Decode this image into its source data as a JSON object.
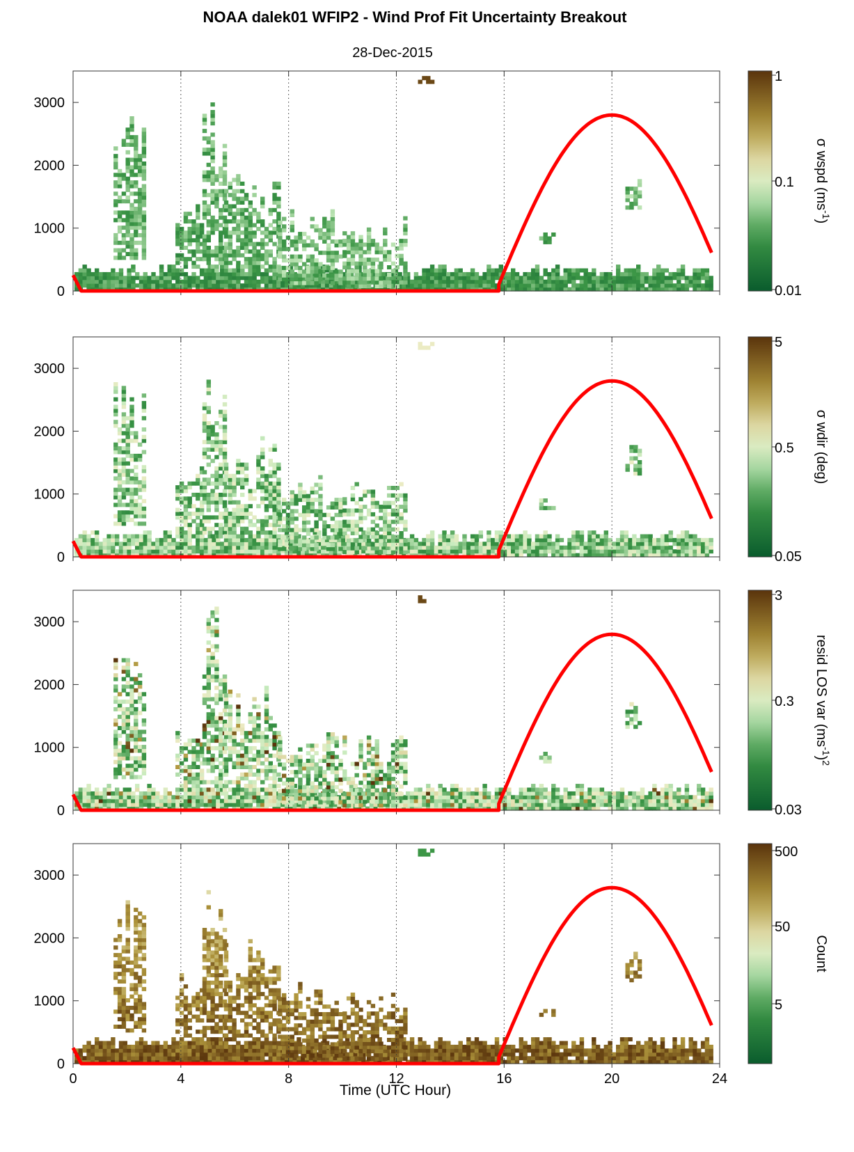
{
  "figure": {
    "title": "NOAA dalek01 WFIP2 - Wind Prof Fit Uncertainty Breakout",
    "subtitle": "28-Dec-2015",
    "xlabel": "Time (UTC Hour)",
    "colors": {
      "sun_curve": "#ff0000",
      "cmap_low": "#0a5a2a",
      "cmap_mid": "#f4f4e4",
      "cmap_high": "#5a330a"
    }
  },
  "chart_data": [
    {
      "type": "heatmap",
      "name": "σ wspd",
      "colorbar": {
        "label_main": "σ wspd (ms",
        "label_sup": "-1",
        "label_tail": ")",
        "ticks": [
          "1",
          "0.1",
          "0.01"
        ]
      },
      "x_ticks": [
        "0",
        "4",
        "8",
        "12",
        "16",
        "20",
        "24"
      ],
      "y_ticks": [
        "0",
        "1000",
        "2000",
        "3000"
      ],
      "xlim": [
        0,
        24
      ],
      "ylim": [
        0,
        3500
      ],
      "sun_curve": "solar elevation overlay (red)",
      "grid": "dotted vertical lines at 4, 8, 12, 16, 20"
    },
    {
      "type": "heatmap",
      "name": "σ wdir",
      "colorbar": {
        "label_main": "σ wdir (deg)",
        "label_sup": "",
        "label_tail": "",
        "ticks": [
          "5",
          "0.5",
          "0.05"
        ]
      },
      "x_ticks": [
        "0",
        "4",
        "8",
        "12",
        "16",
        "20",
        "24"
      ],
      "y_ticks": [
        "0",
        "1000",
        "2000",
        "3000"
      ],
      "xlim": [
        0,
        24
      ],
      "ylim": [
        0,
        3500
      ],
      "grid": "dotted vertical lines at 4, 8, 12, 16, 20"
    },
    {
      "type": "heatmap",
      "name": "resid LOS var",
      "colorbar": {
        "label_main": "resid LOS var (ms",
        "label_sup": "-1",
        "label_tail": ")",
        "label_sup2": "2",
        "ticks": [
          "3",
          "0.3",
          "0.03"
        ]
      },
      "x_ticks": [
        "0",
        "4",
        "8",
        "12",
        "16",
        "20",
        "24"
      ],
      "y_ticks": [
        "0",
        "1000",
        "2000",
        "3000"
      ],
      "xlim": [
        0,
        24
      ],
      "ylim": [
        0,
        3500
      ],
      "grid": "dotted vertical lines at 4, 8, 12, 16, 20"
    },
    {
      "type": "heatmap",
      "name": "Count",
      "colorbar": {
        "label_main": "Count",
        "label_sup": "",
        "label_tail": "",
        "ticks": [
          "500",
          "50",
          "5"
        ]
      },
      "x_ticks": [
        "0",
        "4",
        "8",
        "12",
        "16",
        "20",
        "24"
      ],
      "y_ticks": [
        "0",
        "1000",
        "2000",
        "3000"
      ],
      "xlim": [
        0,
        24
      ],
      "ylim": [
        0,
        3500
      ],
      "grid": "dotted vertical lines at 4, 8, 12, 16, 20"
    }
  ],
  "solar_curve": {
    "x": [
      0,
      0.3,
      15.8,
      16.5,
      17.5,
      18.5,
      19.5,
      20.0,
      20.5,
      21.5,
      22.5,
      23.3,
      23.8
    ],
    "y": [
      250,
      0,
      0,
      700,
      1700,
      2400,
      2750,
      2800,
      2780,
      2450,
      1850,
      1100,
      550
    ]
  },
  "cell_clusters": [
    {
      "x0": 0.05,
      "x1": 23.7,
      "y0": 0,
      "y1": 400,
      "level": 0.25,
      "comment": "continuous low layer"
    },
    {
      "x0": 1.5,
      "x1": 2.6,
      "y0": 500,
      "y1": 2800,
      "level": 0.35
    },
    {
      "x0": 3.8,
      "x1": 4.8,
      "y0": 300,
      "y1": 1400,
      "level": 0.3
    },
    {
      "x0": 4.8,
      "x1": 5.6,
      "y0": 300,
      "y1": 3300,
      "level": 0.35
    },
    {
      "x0": 5.6,
      "x1": 7.6,
      "y0": 300,
      "y1": 2000,
      "level": 0.35
    },
    {
      "x0": 7.6,
      "x1": 10.0,
      "y0": 100,
      "y1": 1300,
      "level": 0.4
    },
    {
      "x0": 10.0,
      "x1": 12.4,
      "y0": 50,
      "y1": 1200,
      "level": 0.4
    },
    {
      "x0": 12.8,
      "x1": 13.4,
      "y0": 3300,
      "y1": 3400,
      "level": 0.9
    },
    {
      "x0": 17.3,
      "x1": 17.8,
      "y0": 750,
      "y1": 900,
      "level": 0.35
    },
    {
      "x0": 20.5,
      "x1": 21.0,
      "y0": 1300,
      "y1": 1800,
      "level": 0.4
    }
  ]
}
